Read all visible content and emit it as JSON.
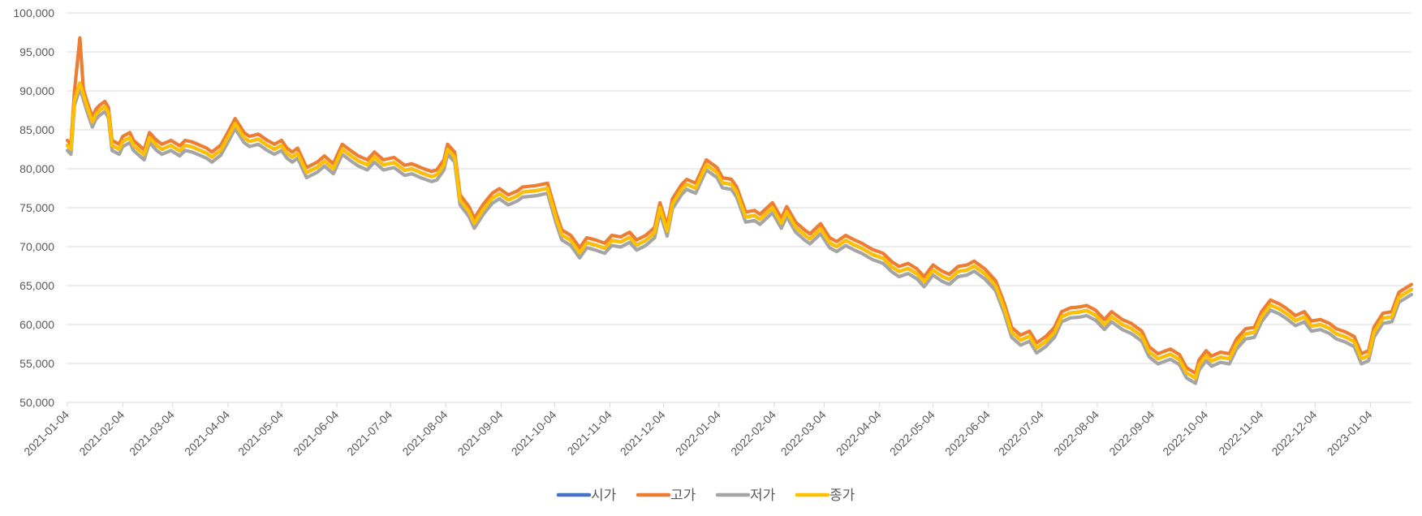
{
  "chart_data": {
    "type": "line",
    "title": "",
    "xlabel": "",
    "ylabel": "",
    "ylim": [
      50000,
      100000
    ],
    "yticks": [
      "50,000",
      "55,000",
      "60,000",
      "65,000",
      "70,000",
      "75,000",
      "80,000",
      "85,000",
      "90,000",
      "95,000",
      "100,000"
    ],
    "xlim": [
      "2021-01-04",
      "2023-01-27"
    ],
    "xticks": [
      "2021-01-04",
      "2021-02-04",
      "2021-03-04",
      "2021-04-04",
      "2021-05-04",
      "2021-06-04",
      "2021-07-04",
      "2021-08-04",
      "2021-09-04",
      "2021-10-04",
      "2021-11-04",
      "2021-12-04",
      "2022-01-04",
      "2022-02-04",
      "2022-03-04",
      "2022-04-04",
      "2022-05-04",
      "2022-06-04",
      "2022-07-04",
      "2022-08-04",
      "2022-09-04",
      "2022-10-04",
      "2022-11-04",
      "2022-12-04",
      "2023-01-04"
    ],
    "grid": true,
    "legend_position": "bottom",
    "closing_series": {
      "dates": [
        "2021-01-04",
        "2021-01-06",
        "2021-01-08",
        "2021-01-11",
        "2021-01-13",
        "2021-01-15",
        "2021-01-18",
        "2021-01-20",
        "2021-01-22",
        "2021-01-25",
        "2021-01-27",
        "2021-01-29",
        "2021-02-02",
        "2021-02-04",
        "2021-02-08",
        "2021-02-10",
        "2021-02-16",
        "2021-02-19",
        "2021-02-23",
        "2021-02-26",
        "2021-03-03",
        "2021-03-08",
        "2021-03-11",
        "2021-03-15",
        "2021-03-18",
        "2021-03-23",
        "2021-03-26",
        "2021-03-31",
        "2021-04-05",
        "2021-04-08",
        "2021-04-13",
        "2021-04-16",
        "2021-04-21",
        "2021-04-26",
        "2021-04-30",
        "2021-05-04",
        "2021-05-07",
        "2021-05-10",
        "2021-05-13",
        "2021-05-18",
        "2021-05-24",
        "2021-05-28",
        "2021-06-02",
        "2021-06-07",
        "2021-06-11",
        "2021-06-16",
        "2021-06-21",
        "2021-06-25",
        "2021-06-30",
        "2021-07-06",
        "2021-07-12",
        "2021-07-16",
        "2021-07-21",
        "2021-07-27",
        "2021-07-30",
        "2021-08-03",
        "2021-08-05",
        "2021-08-09",
        "2021-08-12",
        "2021-08-17",
        "2021-08-20",
        "2021-08-25",
        "2021-08-30",
        "2021-09-03",
        "2021-09-08",
        "2021-09-13",
        "2021-09-16",
        "2021-09-24",
        "2021-09-30",
        "2021-10-05",
        "2021-10-08",
        "2021-10-13",
        "2021-10-18",
        "2021-10-22",
        "2021-10-27",
        "2021-11-01",
        "2021-11-05",
        "2021-11-10",
        "2021-11-15",
        "2021-11-19",
        "2021-11-24",
        "2021-11-29",
        "2021-12-02",
        "2021-12-06",
        "2021-12-09",
        "2021-12-14",
        "2021-12-17",
        "2021-12-22",
        "2021-12-28",
        "2022-01-03",
        "2022-01-06",
        "2022-01-11",
        "2022-01-14",
        "2022-01-19",
        "2022-01-24",
        "2022-01-27",
        "2022-02-03",
        "2022-02-08",
        "2022-02-11",
        "2022-02-16",
        "2022-02-21",
        "2022-02-24",
        "2022-03-02",
        "2022-03-07",
        "2022-03-11",
        "2022-03-16",
        "2022-03-21",
        "2022-03-25",
        "2022-03-31",
        "2022-04-06",
        "2022-04-11",
        "2022-04-15",
        "2022-04-20",
        "2022-04-25",
        "2022-04-29",
        "2022-05-04",
        "2022-05-09",
        "2022-05-13",
        "2022-05-18",
        "2022-05-23",
        "2022-05-27",
        "2022-06-02",
        "2022-06-08",
        "2022-06-13",
        "2022-06-17",
        "2022-06-22",
        "2022-06-27",
        "2022-07-01",
        "2022-07-06",
        "2022-07-11",
        "2022-07-15",
        "2022-07-20",
        "2022-07-25",
        "2022-07-29",
        "2022-08-03",
        "2022-08-08",
        "2022-08-12",
        "2022-08-18",
        "2022-08-23",
        "2022-08-29",
        "2022-09-02",
        "2022-09-07",
        "2022-09-14",
        "2022-09-19",
        "2022-09-23",
        "2022-09-28",
        "2022-09-30",
        "2022-10-04",
        "2022-10-07",
        "2022-10-12",
        "2022-10-17",
        "2022-10-21",
        "2022-10-26",
        "2022-10-31",
        "2022-11-04",
        "2022-11-09",
        "2022-11-14",
        "2022-11-18",
        "2022-11-23",
        "2022-11-28",
        "2022-12-02",
        "2022-12-07",
        "2022-12-12",
        "2022-12-16",
        "2022-12-21",
        "2022-12-26",
        "2022-12-30",
        "2023-01-03",
        "2023-01-06",
        "2023-01-11",
        "2023-01-16",
        "2023-01-20",
        "2023-01-27"
      ],
      "values": [
        83000,
        82500,
        88800,
        91000,
        89500,
        88000,
        86000,
        87000,
        87500,
        88000,
        87200,
        83000,
        82500,
        83500,
        84000,
        83000,
        81800,
        84000,
        83000,
        82500,
        83000,
        82300,
        83000,
        82800,
        82500,
        82000,
        81500,
        82400,
        84500,
        85800,
        84000,
        83500,
        83800,
        83000,
        82500,
        83000,
        82000,
        81500,
        82000,
        79500,
        80200,
        81000,
        80000,
        82500,
        81800,
        81000,
        80500,
        81500,
        80500,
        80800,
        79800,
        80000,
        79500,
        79000,
        79200,
        80500,
        82500,
        81500,
        76000,
        74500,
        73000,
        74800,
        76200,
        76800,
        76000,
        76500,
        77000,
        77200,
        77500,
        73500,
        71500,
        70800,
        69200,
        70500,
        70200,
        69800,
        70800,
        70600,
        71200,
        70200,
        70800,
        71800,
        75000,
        72000,
        75500,
        77300,
        78000,
        77500,
        80500,
        79500,
        78200,
        78000,
        77000,
        73800,
        74000,
        73500,
        75000,
        73000,
        74500,
        72500,
        71500,
        71000,
        72300,
        70500,
        70000,
        70800,
        70200,
        69800,
        69000,
        68500,
        67400,
        66800,
        67200,
        66500,
        65500,
        67000,
        66200,
        65800,
        66800,
        67000,
        67500,
        66500,
        65000,
        62000,
        59000,
        58000,
        58500,
        57000,
        57800,
        59000,
        61000,
        61500,
        61600,
        61800,
        61200,
        60000,
        61000,
        60000,
        59500,
        58500,
        56500,
        55600,
        56200,
        55500,
        53800,
        53100,
        54800,
        56000,
        55300,
        55800,
        55600,
        57500,
        58800,
        59000,
        61000,
        62500,
        62000,
        61400,
        60500,
        61000,
        59800,
        60000,
        59500,
        58800,
        58400,
        57800,
        55600,
        56000,
        59000,
        60800,
        61000,
        63500,
        64500
      ]
    },
    "series": [
      {
        "name": "시가",
        "color": "#4472C4"
      },
      {
        "name": "고가",
        "color": "#ED7D31"
      },
      {
        "name": "저가",
        "color": "#A5A5A5"
      },
      {
        "name": "종가",
        "color": "#FFC000"
      }
    ]
  }
}
